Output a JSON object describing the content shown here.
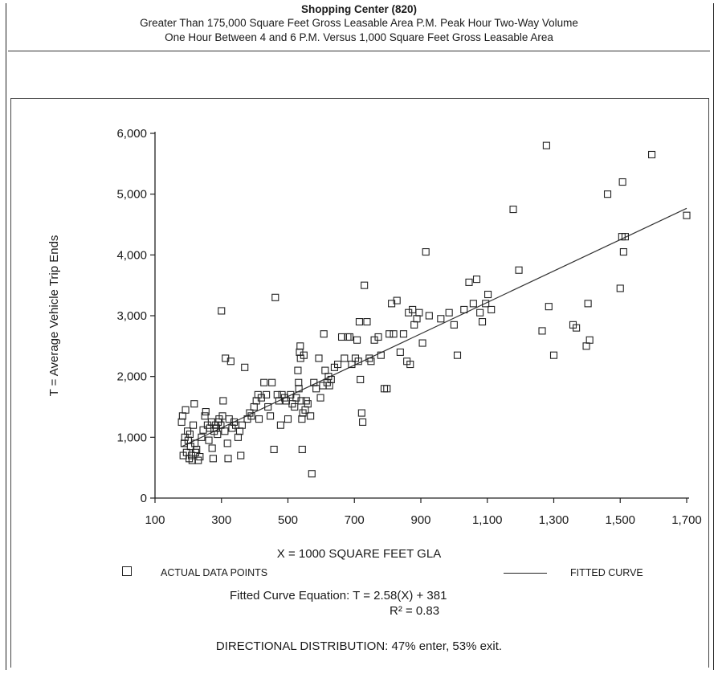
{
  "header": {
    "title": "Shopping Center (820)",
    "subtitle_line1": "Greater Than 175,000 Square Feet Gross Leasable Area P.M. Peak Hour Two-Way Volume",
    "subtitle_line2": "One Hour Between 4 and 6 P.M. Versus 1,000 Square Feet Gross Leasable Area"
  },
  "chart_data": {
    "type": "scatter",
    "title": "Shopping Center (820)",
    "xlabel": "X = 1000 SQUARE FEET GLA",
    "ylabel": "T = Average Vehicle Trip Ends",
    "xlim": [
      100,
      1700
    ],
    "ylim": [
      0,
      6000
    ],
    "x_ticks": [
      100,
      300,
      500,
      700,
      900,
      1100,
      1300,
      1500,
      1700
    ],
    "x_tick_labels": [
      "100",
      "300",
      "500",
      "700",
      "900",
      "1,100",
      "1,300",
      "1,500",
      "1,700"
    ],
    "y_ticks": [
      0,
      1000,
      2000,
      3000,
      4000,
      5000,
      6000
    ],
    "y_tick_labels": [
      "0",
      "1,000",
      "2,000",
      "3,000",
      "4,000",
      "5,000",
      "6,000"
    ],
    "grid": false,
    "legend": {
      "position": "bottom",
      "points_label": "ACTUAL DATA POINTS",
      "curve_label": "FITTED CURVE"
    },
    "fitted_curve": {
      "slope": 2.58,
      "intercept": 381,
      "x_range": [
        180,
        1700
      ],
      "equation_text": "Fitted Curve Equation:  T = 2.58(X) + 381",
      "r2_text": "R² = 0.83"
    },
    "points": [
      [
        180,
        1250
      ],
      [
        183,
        1350
      ],
      [
        185,
        700
      ],
      [
        188,
        900
      ],
      [
        190,
        1000
      ],
      [
        192,
        1450
      ],
      [
        195,
        750
      ],
      [
        198,
        1100
      ],
      [
        200,
        950
      ],
      [
        203,
        650
      ],
      [
        205,
        1050
      ],
      [
        207,
        850
      ],
      [
        210,
        700
      ],
      [
        212,
        620
      ],
      [
        215,
        1200
      ],
      [
        218,
        1550
      ],
      [
        220,
        900
      ],
      [
        222,
        750
      ],
      [
        225,
        800
      ],
      [
        230,
        620
      ],
      [
        235,
        680
      ],
      [
        240,
        1000
      ],
      [
        245,
        1120
      ],
      [
        250,
        1350
      ],
      [
        253,
        1420
      ],
      [
        258,
        1200
      ],
      [
        262,
        950
      ],
      [
        265,
        1150
      ],
      [
        270,
        1250
      ],
      [
        272,
        820
      ],
      [
        275,
        650
      ],
      [
        278,
        1100
      ],
      [
        282,
        1200
      ],
      [
        285,
        1150
      ],
      [
        288,
        1050
      ],
      [
        290,
        1250
      ],
      [
        293,
        1300
      ],
      [
        298,
        1200
      ],
      [
        300,
        3080
      ],
      [
        303,
        1350
      ],
      [
        305,
        1600
      ],
      [
        310,
        1100
      ],
      [
        312,
        2300
      ],
      [
        318,
        900
      ],
      [
        320,
        650
      ],
      [
        323,
        1300
      ],
      [
        328,
        2250
      ],
      [
        332,
        1150
      ],
      [
        338,
        1250
      ],
      [
        343,
        1200
      ],
      [
        350,
        1000
      ],
      [
        355,
        1100
      ],
      [
        358,
        700
      ],
      [
        362,
        1200
      ],
      [
        370,
        2150
      ],
      [
        378,
        1300
      ],
      [
        385,
        1400
      ],
      [
        390,
        1350
      ],
      [
        398,
        1500
      ],
      [
        405,
        1600
      ],
      [
        410,
        1700
      ],
      [
        413,
        1300
      ],
      [
        420,
        1650
      ],
      [
        428,
        1900
      ],
      [
        435,
        1700
      ],
      [
        440,
        1500
      ],
      [
        447,
        1350
      ],
      [
        452,
        1900
      ],
      [
        458,
        800
      ],
      [
        462,
        3300
      ],
      [
        468,
        1700
      ],
      [
        473,
        1600
      ],
      [
        478,
        1200
      ],
      [
        482,
        1700
      ],
      [
        490,
        1650
      ],
      [
        495,
        1600
      ],
      [
        500,
        1300
      ],
      [
        508,
        1700
      ],
      [
        513,
        1550
      ],
      [
        520,
        1500
      ],
      [
        525,
        1650
      ],
      [
        530,
        2100
      ],
      [
        532,
        1900
      ],
      [
        533,
        1800
      ],
      [
        535,
        2400
      ],
      [
        537,
        2500
      ],
      [
        538,
        2300
      ],
      [
        540,
        1600
      ],
      [
        542,
        1300
      ],
      [
        543,
        800
      ],
      [
        545,
        1400
      ],
      [
        548,
        2350
      ],
      [
        552,
        1450
      ],
      [
        555,
        1600
      ],
      [
        560,
        1550
      ],
      [
        568,
        1350
      ],
      [
        572,
        400
      ],
      [
        578,
        1900
      ],
      [
        585,
        1800
      ],
      [
        593,
        2300
      ],
      [
        598,
        1650
      ],
      [
        605,
        1850
      ],
      [
        608,
        2700
      ],
      [
        612,
        2100
      ],
      [
        618,
        1900
      ],
      [
        622,
        2000
      ],
      [
        625,
        1850
      ],
      [
        630,
        1950
      ],
      [
        640,
        2150
      ],
      [
        650,
        2200
      ],
      [
        662,
        2650
      ],
      [
        670,
        2300
      ],
      [
        680,
        2650
      ],
      [
        686,
        2650
      ],
      [
        692,
        2200
      ],
      [
        703,
        2300
      ],
      [
        708,
        2600
      ],
      [
        712,
        2250
      ],
      [
        715,
        2900
      ],
      [
        718,
        1950
      ],
      [
        722,
        1400
      ],
      [
        725,
        1250
      ],
      [
        730,
        3500
      ],
      [
        738,
        2900
      ],
      [
        745,
        2300
      ],
      [
        750,
        2250
      ],
      [
        760,
        2600
      ],
      [
        772,
        2650
      ],
      [
        780,
        2350
      ],
      [
        790,
        1800
      ],
      [
        798,
        1800
      ],
      [
        805,
        2700
      ],
      [
        812,
        3200
      ],
      [
        818,
        2700
      ],
      [
        828,
        3250
      ],
      [
        838,
        2400
      ],
      [
        848,
        2700
      ],
      [
        858,
        2250
      ],
      [
        863,
        3050
      ],
      [
        868,
        2200
      ],
      [
        875,
        3100
      ],
      [
        880,
        2850
      ],
      [
        888,
        2950
      ],
      [
        895,
        3050
      ],
      [
        905,
        2550
      ],
      [
        915,
        4050
      ],
      [
        925,
        3000
      ],
      [
        960,
        2950
      ],
      [
        985,
        3050
      ],
      [
        1000,
        2850
      ],
      [
        1010,
        2350
      ],
      [
        1030,
        3100
      ],
      [
        1045,
        3550
      ],
      [
        1058,
        3200
      ],
      [
        1068,
        3600
      ],
      [
        1078,
        3050
      ],
      [
        1085,
        2900
      ],
      [
        1095,
        3200
      ],
      [
        1102,
        3350
      ],
      [
        1112,
        3100
      ],
      [
        1178,
        4750
      ],
      [
        1195,
        3750
      ],
      [
        1265,
        2750
      ],
      [
        1278,
        5800
      ],
      [
        1285,
        3150
      ],
      [
        1300,
        2350
      ],
      [
        1358,
        2850
      ],
      [
        1368,
        2800
      ],
      [
        1398,
        2500
      ],
      [
        1403,
        3200
      ],
      [
        1408,
        2600
      ],
      [
        1462,
        5000
      ],
      [
        1500,
        3450
      ],
      [
        1505,
        4300
      ],
      [
        1507,
        5200
      ],
      [
        1510,
        4050
      ],
      [
        1515,
        4300
      ],
      [
        1595,
        5650
      ],
      [
        1700,
        4650
      ]
    ]
  },
  "xlabel_text": "X = 1000 SQUARE FEET GLA",
  "legend": {
    "points_label": "ACTUAL DATA POINTS",
    "curve_label": "FITTED CURVE"
  },
  "equation": {
    "line1": "Fitted Curve Equation:  T = 2.58(X) + 381",
    "line2": "R² = 0.83"
  },
  "directional": "DIRECTIONAL DISTRIBUTION: 47% enter, 53% exit."
}
